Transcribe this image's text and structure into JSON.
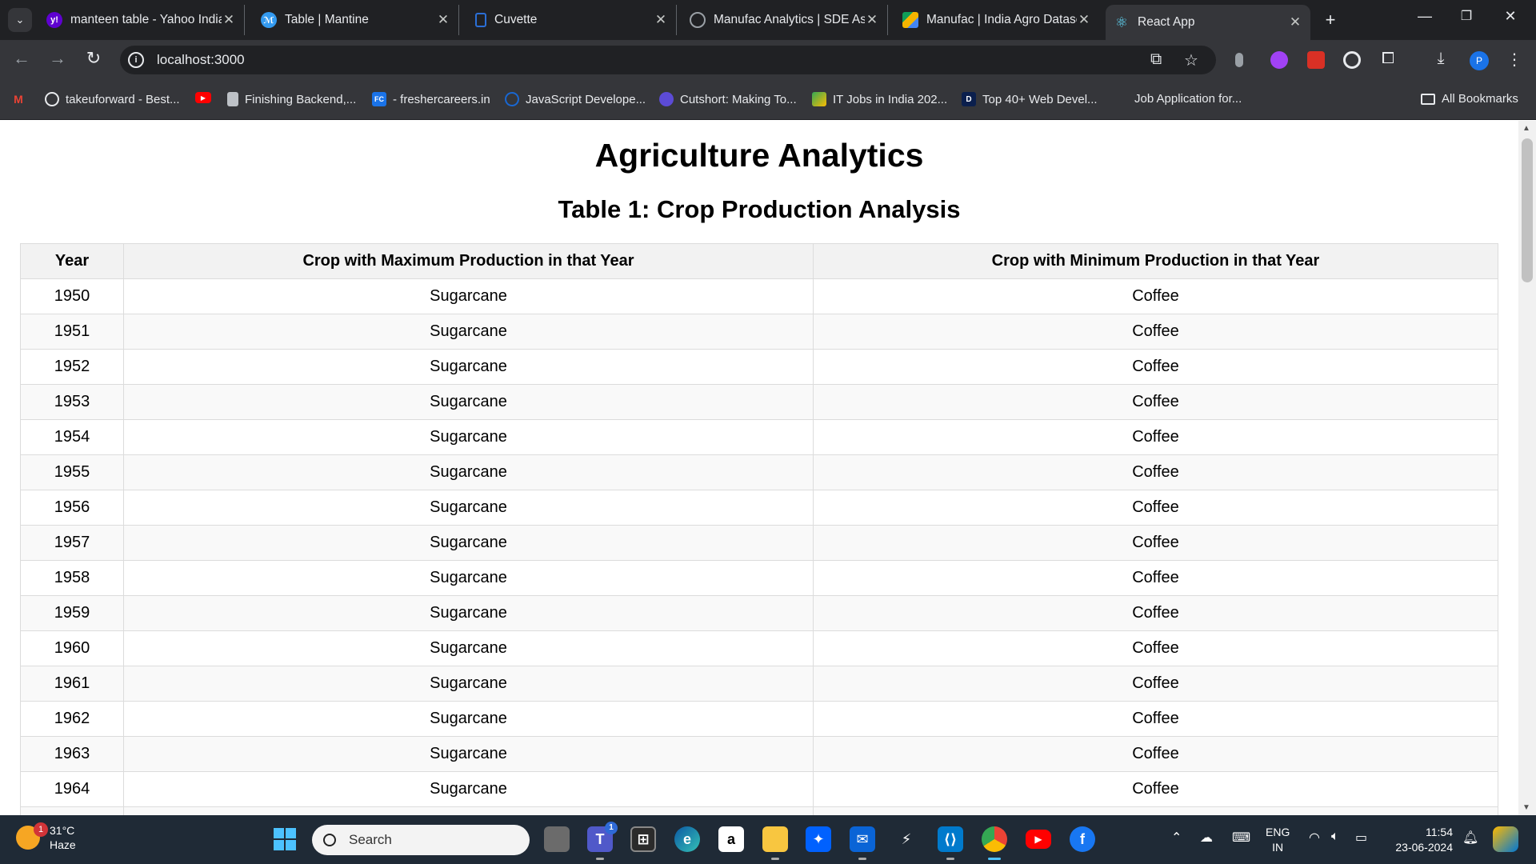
{
  "browser": {
    "tabs": [
      {
        "title": "manteen table - Yahoo India",
        "favicon": "yahoo-icon",
        "color": "#5f01d1"
      },
      {
        "title": "Table | Mantine",
        "favicon": "mantine-icon",
        "color": "#339af0"
      },
      {
        "title": "Cuvette",
        "favicon": "cuvette-icon",
        "color": "#2b6fd6"
      },
      {
        "title": "Manufac Analytics | SDE Assignment",
        "favicon": "globe-icon",
        "color": "#5f6368"
      },
      {
        "title": "Manufac | India Agro Dataset",
        "favicon": "google-drive-icon",
        "color": "#f4b400"
      },
      {
        "title": "React App",
        "favicon": "react-icon",
        "color": "#61dafb"
      }
    ],
    "address": "localhost:3000",
    "profile_initial": "P",
    "bookmarks": [
      {
        "label": "",
        "icon": "gmail-icon",
        "color": "#ea4335"
      },
      {
        "label": "takeuforward - Best...",
        "icon": "tuf-icon",
        "color": "#e8eaed"
      },
      {
        "label": "",
        "icon": "youtube-icon",
        "color": "#ff0000"
      },
      {
        "label": "Finishing Backend,...",
        "icon": "document-icon",
        "color": "#bdc1c6"
      },
      {
        "label": "- freshercareers.in",
        "icon": "fc-icon",
        "color": "#1a73e8"
      },
      {
        "label": "JavaScript Develope...",
        "icon": "js-icon",
        "color": "#1967d2"
      },
      {
        "label": "Cutshort: Making To...",
        "icon": "cutshort-icon",
        "color": "#5c4bd6"
      },
      {
        "label": "IT Jobs in India 202...",
        "icon": "jobs-icon",
        "color": "#34a853"
      },
      {
        "label": "Top 40+ Web Devel...",
        "icon": "d-icon",
        "color": "#0b1f4d"
      },
      {
        "label": "Job Application for...",
        "icon": "",
        "color": ""
      }
    ],
    "all_bookmarks": "All Bookmarks"
  },
  "page": {
    "title": "Agriculture Analytics",
    "table_title": "Table 1: Crop Production Analysis",
    "columns": [
      "Year",
      "Crop with Maximum Production in that Year",
      "Crop with Minimum Production in that Year"
    ],
    "rows": [
      [
        "1950",
        "Sugarcane",
        "Coffee"
      ],
      [
        "1951",
        "Sugarcane",
        "Coffee"
      ],
      [
        "1952",
        "Sugarcane",
        "Coffee"
      ],
      [
        "1953",
        "Sugarcane",
        "Coffee"
      ],
      [
        "1954",
        "Sugarcane",
        "Coffee"
      ],
      [
        "1955",
        "Sugarcane",
        "Coffee"
      ],
      [
        "1956",
        "Sugarcane",
        "Coffee"
      ],
      [
        "1957",
        "Sugarcane",
        "Coffee"
      ],
      [
        "1958",
        "Sugarcane",
        "Coffee"
      ],
      [
        "1959",
        "Sugarcane",
        "Coffee"
      ],
      [
        "1960",
        "Sugarcane",
        "Coffee"
      ],
      [
        "1961",
        "Sugarcane",
        "Coffee"
      ],
      [
        "1962",
        "Sugarcane",
        "Coffee"
      ],
      [
        "1963",
        "Sugarcane",
        "Coffee"
      ],
      [
        "1964",
        "Sugarcane",
        "Coffee"
      ],
      [
        "",
        "",
        ""
      ]
    ]
  },
  "taskbar": {
    "weather_temp": "31°C",
    "weather_desc": "Haze",
    "weather_badge": "1",
    "search_placeholder": "Search",
    "teams_badge": "1",
    "lang_top": "ENG",
    "lang_bottom": "IN",
    "time": "11:54",
    "date": "23-06-2024"
  }
}
